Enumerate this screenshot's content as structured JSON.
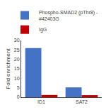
{
  "chart_data": {
    "type": "bar",
    "categories": [
      "ID1",
      "SAT2"
    ],
    "series": [
      {
        "name": "Phospho-SMAD2 (pThr8) -\n#42403G",
        "color": "#4472C4",
        "values": [
          26,
          5.2
        ]
      },
      {
        "name": "IgG",
        "color": "#C00000",
        "values": [
          1.2,
          1.1
        ]
      }
    ],
    "ylabel": "Fold enrichment",
    "ylim": [
      0,
      30
    ],
    "yticks": [
      0,
      5,
      10,
      15,
      20,
      25,
      30
    ],
    "grid": false,
    "legend": "upper right"
  }
}
